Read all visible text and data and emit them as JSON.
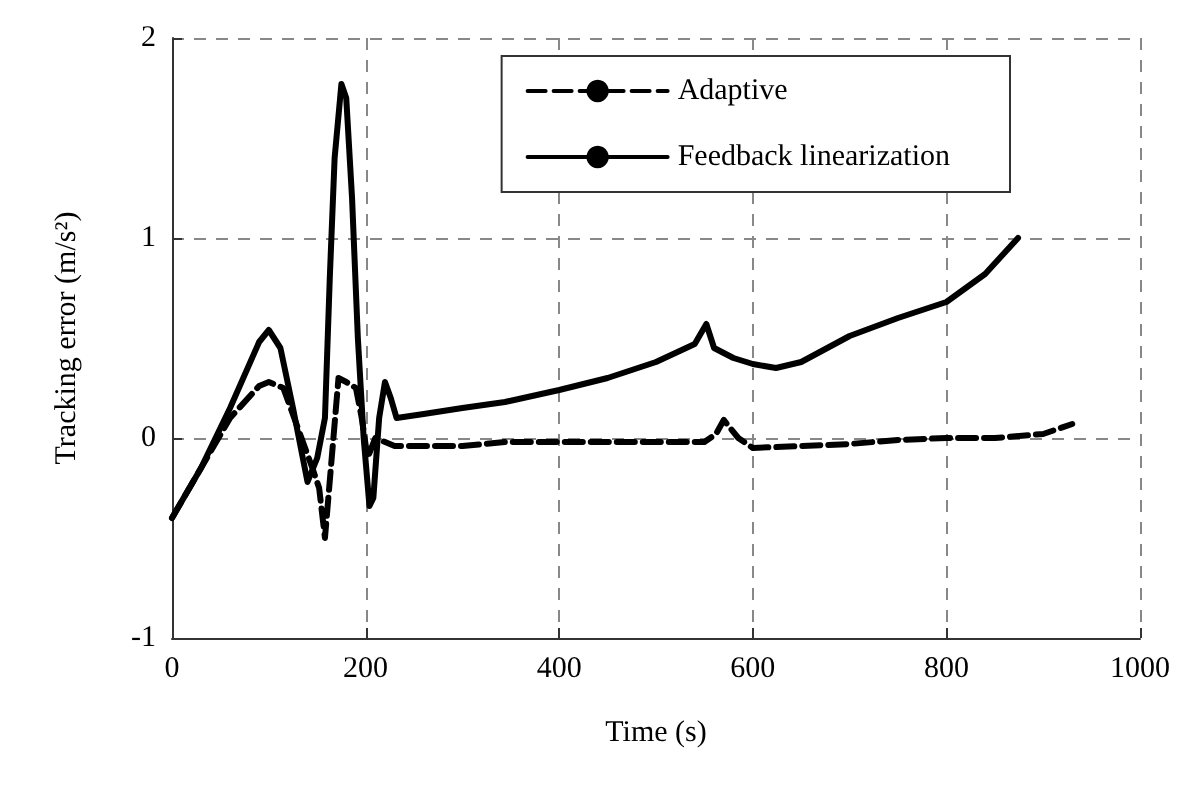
{
  "chart_data": {
    "type": "line",
    "xlabel": "Time (s)",
    "ylabel": "Tracking error (m/s²)",
    "xlim": [
      0,
      1000
    ],
    "xticks": [
      0,
      200,
      400,
      600,
      800,
      1000
    ],
    "ylim": [
      -1,
      2
    ],
    "yticks": [
      -1,
      0,
      1,
      2
    ],
    "grid": true,
    "legend": "top right",
    "marker": "none",
    "series": [
      {
        "name": "Adaptive",
        "color": "#000000",
        "line_style": "dashed",
        "x": [
          0,
          30,
          60,
          90,
          100,
          115,
          130,
          145,
          152,
          158,
          165,
          172,
          180,
          190,
          196,
          202,
          210,
          230,
          300,
          344,
          400,
          500,
          550,
          562,
          570,
          585,
          600,
          650,
          700,
          750,
          800,
          850,
          900,
          930
        ],
        "values": [
          -0.4,
          -0.15,
          0.1,
          0.26,
          0.28,
          0.25,
          0.05,
          -0.15,
          -0.25,
          -0.5,
          -0.1,
          0.3,
          0.28,
          0.25,
          0.1,
          -0.1,
          0.0,
          -0.04,
          -0.04,
          -0.02,
          -0.02,
          -0.02,
          -0.02,
          0.02,
          0.09,
          0.0,
          -0.05,
          -0.04,
          -0.03,
          -0.01,
          0.0,
          0.0,
          0.02,
          0.07
        ]
      },
      {
        "name": "Feedback linearization",
        "color": "#000000",
        "line_style": "solid",
        "x": [
          0,
          30,
          60,
          90,
          100,
          112,
          125,
          140,
          150,
          158,
          163,
          168,
          175,
          180,
          186,
          192,
          198,
          204,
          208,
          214,
          220,
          226,
          232,
          260,
          300,
          344,
          400,
          450,
          500,
          540,
          552,
          560,
          580,
          600,
          624,
          650,
          700,
          750,
          800,
          840,
          874
        ],
        "values": [
          -0.4,
          -0.15,
          0.15,
          0.48,
          0.54,
          0.45,
          0.15,
          -0.22,
          -0.1,
          0.1,
          0.8,
          1.4,
          1.77,
          1.7,
          1.2,
          0.5,
          0.0,
          -0.34,
          -0.3,
          0.1,
          0.28,
          0.2,
          0.1,
          0.12,
          0.15,
          0.18,
          0.24,
          0.3,
          0.38,
          0.47,
          0.57,
          0.45,
          0.4,
          0.37,
          0.35,
          0.38,
          0.51,
          0.6,
          0.68,
          0.82,
          1.0
        ]
      }
    ]
  }
}
